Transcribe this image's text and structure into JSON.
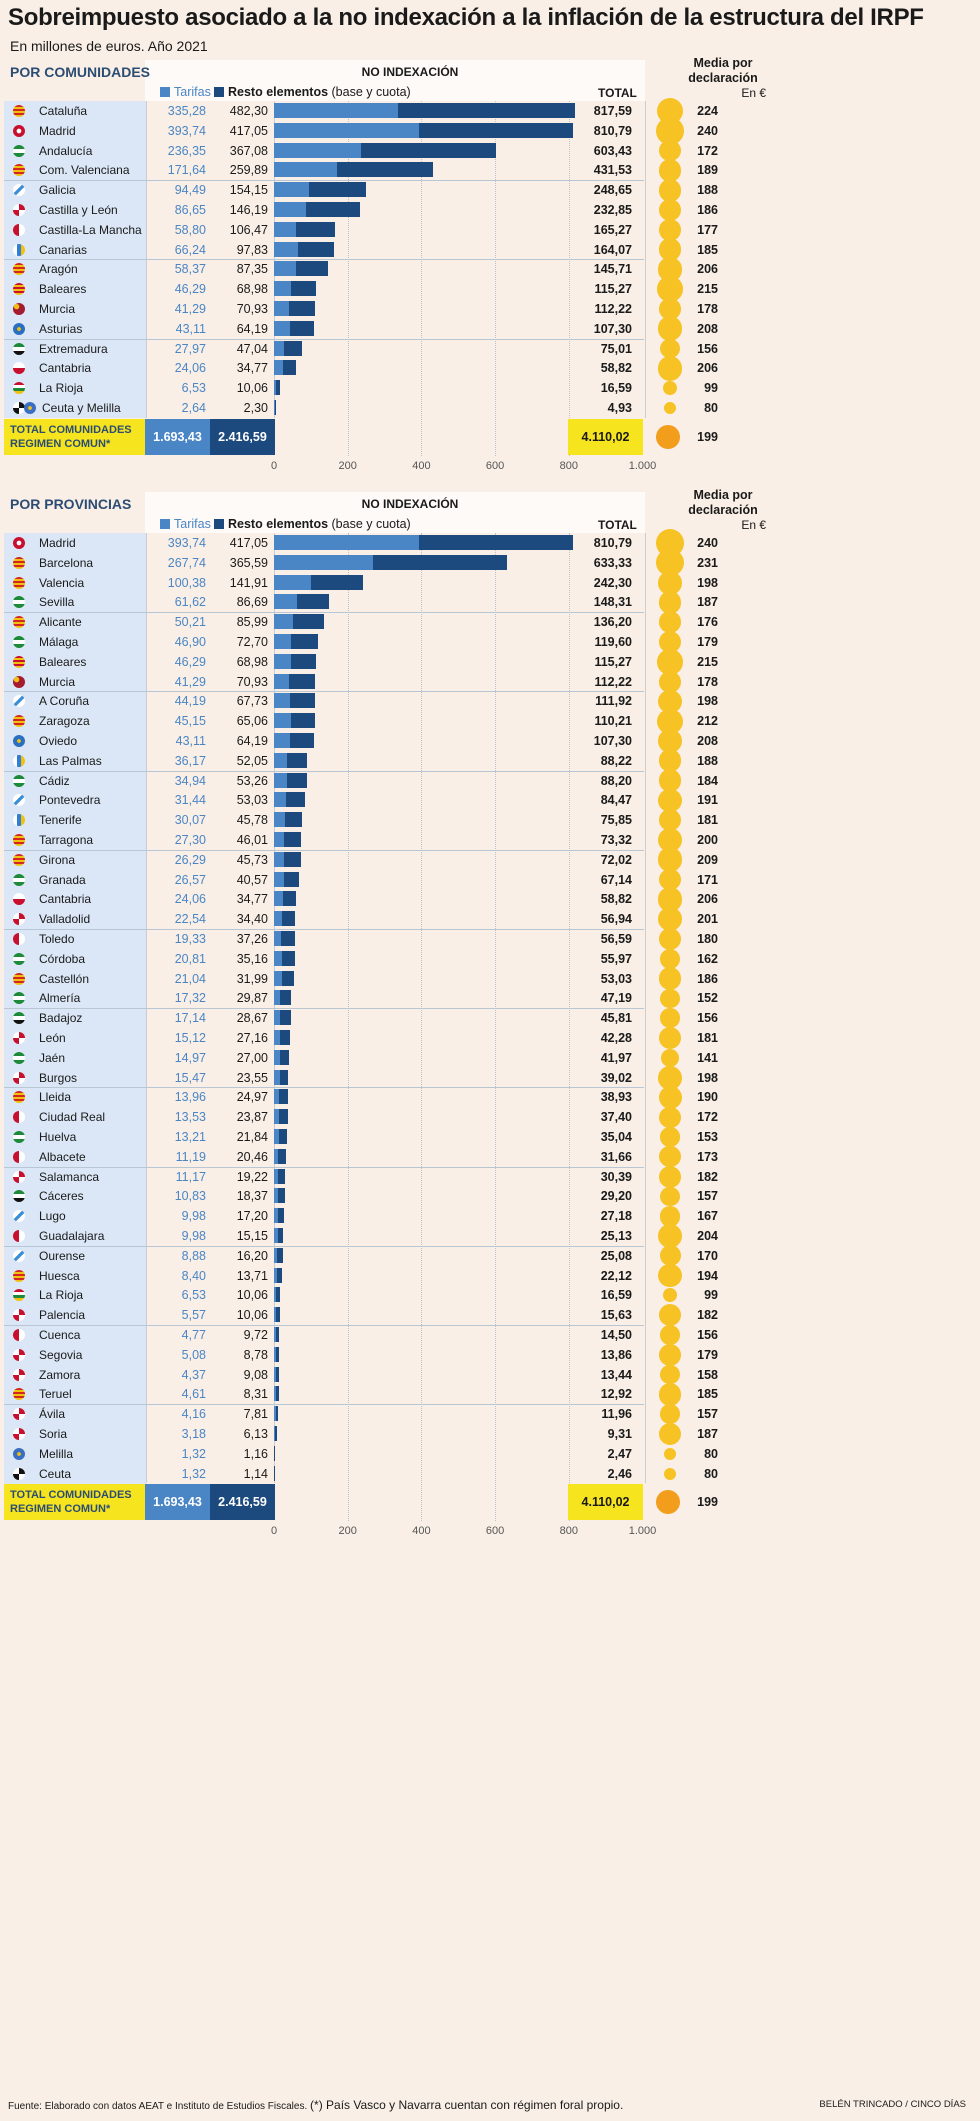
{
  "title": "Sobreimpuesto asociado a la no indexación a la inflación de la estructura del IRPF",
  "subtitle": "En millones de euros. Año 2021",
  "legend": {
    "tarifas": "Tarifas",
    "resto_bold": "Resto elementos",
    "resto_light": "(base y cuota)"
  },
  "header": {
    "no_index": "NO INDEXACIÓN",
    "total": "TOTAL",
    "media_1": "Media por",
    "media_2": "declaración",
    "en": "En €"
  },
  "axis_ticks": [
    "0",
    "200",
    "400",
    "600",
    "800",
    "1.000"
  ],
  "colors": {
    "tarifas": "#4a86c6",
    "resto": "#1d4a7e",
    "dot": "#f7c224",
    "total_dot": "#f29d1c",
    "highlight": "#f6e41e"
  },
  "sections": [
    {
      "label": "POR COMUNIDADES",
      "total_label_1": "TOTAL COMUNIDADES",
      "total_label_2": "REGIMEN COMUN*",
      "total_tarifas": "1.693,43",
      "total_resto": "2.416,59",
      "total_total": "4.110,02",
      "total_media": "199",
      "rows": [
        {
          "name": "Cataluña",
          "tarifas": "335,28",
          "resto": "482,30",
          "total": "817,59",
          "media": "224",
          "flag": "cat"
        },
        {
          "name": "Madrid",
          "tarifas": "393,74",
          "resto": "417,05",
          "total": "810,79",
          "media": "240",
          "flag": "mad"
        },
        {
          "name": "Andalucía",
          "tarifas": "236,35",
          "resto": "367,08",
          "total": "603,43",
          "media": "172",
          "flag": "and"
        },
        {
          "name": "Com. Valenciana",
          "tarifas": "171,64",
          "resto": "259,89",
          "total": "431,53",
          "media": "189",
          "flag": "cat"
        },
        {
          "name": "Galicia",
          "tarifas": "94,49",
          "resto": "154,15",
          "total": "248,65",
          "media": "188",
          "flag": "gal"
        },
        {
          "name": "Castilla y León",
          "tarifas": "86,65",
          "resto": "146,19",
          "total": "232,85",
          "media": "186",
          "flag": "cyl"
        },
        {
          "name": "Castilla-La Mancha",
          "tarifas": "58,80",
          "resto": "106,47",
          "total": "165,27",
          "media": "177",
          "flag": "clm"
        },
        {
          "name": "Canarias",
          "tarifas": "66,24",
          "resto": "97,83",
          "total": "164,07",
          "media": "185",
          "flag": "can"
        },
        {
          "name": "Aragón",
          "tarifas": "58,37",
          "resto": "87,35",
          "total": "145,71",
          "media": "206",
          "flag": "cat"
        },
        {
          "name": "Baleares",
          "tarifas": "46,29",
          "resto": "68,98",
          "total": "115,27",
          "media": "215",
          "flag": "bal"
        },
        {
          "name": "Murcia",
          "tarifas": "41,29",
          "resto": "70,93",
          "total": "112,22",
          "media": "178",
          "flag": "mur"
        },
        {
          "name": "Asturias",
          "tarifas": "43,11",
          "resto": "64,19",
          "total": "107,30",
          "media": "208",
          "flag": "ast"
        },
        {
          "name": "Extremadura",
          "tarifas": "27,97",
          "resto": "47,04",
          "total": "75,01",
          "media": "156",
          "flag": "ext"
        },
        {
          "name": "Cantabria",
          "tarifas": "24,06",
          "resto": "34,77",
          "total": "58,82",
          "media": "206",
          "flag": "ctb"
        },
        {
          "name": "La Rioja",
          "tarifas": "6,53",
          "resto": "10,06",
          "total": "16,59",
          "media": "99",
          "flag": "rio"
        },
        {
          "name": "Ceuta y Melilla",
          "tarifas": "2,64",
          "resto": "2,30",
          "total": "4,93",
          "media": "80",
          "flag": "ceu",
          "flag2": "mel"
        }
      ]
    },
    {
      "label": "POR PROVINCIAS",
      "total_label_1": "TOTAL COMUNIDADES",
      "total_label_2": "REGIMEN COMUN*",
      "total_tarifas": "1.693,43",
      "total_resto": "2.416,59",
      "total_total": "4.110,02",
      "total_media": "199",
      "rows": [
        {
          "name": "Madrid",
          "tarifas": "393,74",
          "resto": "417,05",
          "total": "810,79",
          "media": "240",
          "flag": "mad"
        },
        {
          "name": "Barcelona",
          "tarifas": "267,74",
          "resto": "365,59",
          "total": "633,33",
          "media": "231",
          "flag": "cat"
        },
        {
          "name": "Valencia",
          "tarifas": "100,38",
          "resto": "141,91",
          "total": "242,30",
          "media": "198",
          "flag": "cat"
        },
        {
          "name": "Sevilla",
          "tarifas": "61,62",
          "resto": "86,69",
          "total": "148,31",
          "media": "187",
          "flag": "and"
        },
        {
          "name": "Alicante",
          "tarifas": "50,21",
          "resto": "85,99",
          "total": "136,20",
          "media": "176",
          "flag": "cat"
        },
        {
          "name": "Málaga",
          "tarifas": "46,90",
          "resto": "72,70",
          "total": "119,60",
          "media": "179",
          "flag": "and"
        },
        {
          "name": "Baleares",
          "tarifas": "46,29",
          "resto": "68,98",
          "total": "115,27",
          "media": "215",
          "flag": "bal"
        },
        {
          "name": "Murcia",
          "tarifas": "41,29",
          "resto": "70,93",
          "total": "112,22",
          "media": "178",
          "flag": "mur"
        },
        {
          "name": "A Coruña",
          "tarifas": "44,19",
          "resto": "67,73",
          "total": "111,92",
          "media": "198",
          "flag": "gal"
        },
        {
          "name": "Zaragoza",
          "tarifas": "45,15",
          "resto": "65,06",
          "total": "110,21",
          "media": "212",
          "flag": "cat"
        },
        {
          "name": "Oviedo",
          "tarifas": "43,11",
          "resto": "64,19",
          "total": "107,30",
          "media": "208",
          "flag": "ast"
        },
        {
          "name": "Las Palmas",
          "tarifas": "36,17",
          "resto": "52,05",
          "total": "88,22",
          "media": "188",
          "flag": "can"
        },
        {
          "name": "Cádiz",
          "tarifas": "34,94",
          "resto": "53,26",
          "total": "88,20",
          "media": "184",
          "flag": "and"
        },
        {
          "name": "Pontevedra",
          "tarifas": "31,44",
          "resto": "53,03",
          "total": "84,47",
          "media": "191",
          "flag": "gal"
        },
        {
          "name": "Tenerife",
          "tarifas": "30,07",
          "resto": "45,78",
          "total": "75,85",
          "media": "181",
          "flag": "can"
        },
        {
          "name": "Tarragona",
          "tarifas": "27,30",
          "resto": "46,01",
          "total": "73,32",
          "media": "200",
          "flag": "cat"
        },
        {
          "name": "Girona",
          "tarifas": "26,29",
          "resto": "45,73",
          "total": "72,02",
          "media": "209",
          "flag": "cat"
        },
        {
          "name": "Granada",
          "tarifas": "26,57",
          "resto": "40,57",
          "total": "67,14",
          "media": "171",
          "flag": "and"
        },
        {
          "name": "Cantabria",
          "tarifas": "24,06",
          "resto": "34,77",
          "total": "58,82",
          "media": "206",
          "flag": "ctb"
        },
        {
          "name": "Valladolid",
          "tarifas": "22,54",
          "resto": "34,40",
          "total": "56,94",
          "media": "201",
          "flag": "cyl"
        },
        {
          "name": "Toledo",
          "tarifas": "19,33",
          "resto": "37,26",
          "total": "56,59",
          "media": "180",
          "flag": "clm"
        },
        {
          "name": "Córdoba",
          "tarifas": "20,81",
          "resto": "35,16",
          "total": "55,97",
          "media": "162",
          "flag": "and"
        },
        {
          "name": "Castellón",
          "tarifas": "21,04",
          "resto": "31,99",
          "total": "53,03",
          "media": "186",
          "flag": "cat"
        },
        {
          "name": "Almería",
          "tarifas": "17,32",
          "resto": "29,87",
          "total": "47,19",
          "media": "152",
          "flag": "and"
        },
        {
          "name": "Badajoz",
          "tarifas": "17,14",
          "resto": "28,67",
          "total": "45,81",
          "media": "156",
          "flag": "ext"
        },
        {
          "name": "León",
          "tarifas": "15,12",
          "resto": "27,16",
          "total": "42,28",
          "media": "181",
          "flag": "cyl"
        },
        {
          "name": "Jaén",
          "tarifas": "14,97",
          "resto": "27,00",
          "total": "41,97",
          "media": "141",
          "flag": "and"
        },
        {
          "name": "Burgos",
          "tarifas": "15,47",
          "resto": "23,55",
          "total": "39,02",
          "media": "198",
          "flag": "cyl"
        },
        {
          "name": "Lleida",
          "tarifas": "13,96",
          "resto": "24,97",
          "total": "38,93",
          "media": "190",
          "flag": "cat"
        },
        {
          "name": "Ciudad Real",
          "tarifas": "13,53",
          "resto": "23,87",
          "total": "37,40",
          "media": "172",
          "flag": "clm"
        },
        {
          "name": "Huelva",
          "tarifas": "13,21",
          "resto": "21,84",
          "total": "35,04",
          "media": "153",
          "flag": "and"
        },
        {
          "name": "Albacete",
          "tarifas": "11,19",
          "resto": "20,46",
          "total": "31,66",
          "media": "173",
          "flag": "clm"
        },
        {
          "name": "Salamanca",
          "tarifas": "11,17",
          "resto": "19,22",
          "total": "30,39",
          "media": "182",
          "flag": "cyl"
        },
        {
          "name": "Cáceres",
          "tarifas": "10,83",
          "resto": "18,37",
          "total": "29,20",
          "media": "157",
          "flag": "ext"
        },
        {
          "name": "Lugo",
          "tarifas": "9,98",
          "resto": "17,20",
          "total": "27,18",
          "media": "167",
          "flag": "gal"
        },
        {
          "name": "Guadalajara",
          "tarifas": "9,98",
          "resto": "15,15",
          "total": "25,13",
          "media": "204",
          "flag": "clm"
        },
        {
          "name": "Ourense",
          "tarifas": "8,88",
          "resto": "16,20",
          "total": "25,08",
          "media": "170",
          "flag": "gal"
        },
        {
          "name": "Huesca",
          "tarifas": "8,40",
          "resto": "13,71",
          "total": "22,12",
          "media": "194",
          "flag": "cat"
        },
        {
          "name": "La Rioja",
          "tarifas": "6,53",
          "resto": "10,06",
          "total": "16,59",
          "media": "99",
          "flag": "rio"
        },
        {
          "name": "Palencia",
          "tarifas": "5,57",
          "resto": "10,06",
          "total": "15,63",
          "media": "182",
          "flag": "cyl"
        },
        {
          "name": "Cuenca",
          "tarifas": "4,77",
          "resto": "9,72",
          "total": "14,50",
          "media": "156",
          "flag": "clm"
        },
        {
          "name": "Segovia",
          "tarifas": "5,08",
          "resto": "8,78",
          "total": "13,86",
          "media": "179",
          "flag": "cyl"
        },
        {
          "name": "Zamora",
          "tarifas": "4,37",
          "resto": "9,08",
          "total": "13,44",
          "media": "158",
          "flag": "cyl"
        },
        {
          "name": "Teruel",
          "tarifas": "4,61",
          "resto": "8,31",
          "total": "12,92",
          "media": "185",
          "flag": "cat"
        },
        {
          "name": "Ávila",
          "tarifas": "4,16",
          "resto": "7,81",
          "total": "11,96",
          "media": "157",
          "flag": "cyl"
        },
        {
          "name": "Soria",
          "tarifas": "3,18",
          "resto": "6,13",
          "total": "9,31",
          "media": "187",
          "flag": "cyl"
        },
        {
          "name": "Melilla",
          "tarifas": "1,32",
          "resto": "1,16",
          "total": "2,47",
          "media": "80",
          "flag": "mel"
        },
        {
          "name": "Ceuta",
          "tarifas": "1,32",
          "resto": "1,14",
          "total": "2,46",
          "media": "80",
          "flag": "ceu"
        }
      ]
    }
  ],
  "footer": {
    "source": "Fuente: Elaborado con datos AEAT e Instituto de Estudios Fiscales.",
    "note": "(*) País Vasco y Navarra cuentan con régimen foral propio.",
    "credit": "BELÉN TRINCADO / CINCO DÍAS"
  },
  "chart_data": [
    {
      "type": "bar",
      "stacked": true,
      "orientation": "horizontal",
      "section": "POR COMUNIDADES",
      "xlim": [
        0,
        1000
      ],
      "categories": [
        "Cataluña",
        "Madrid",
        "Andalucía",
        "Com. Valenciana",
        "Galicia",
        "Castilla y León",
        "Castilla-La Mancha",
        "Canarias",
        "Aragón",
        "Baleares",
        "Murcia",
        "Asturias",
        "Extremadura",
        "Cantabria",
        "La Rioja",
        "Ceuta y Melilla"
      ],
      "series": [
        {
          "name": "Tarifas",
          "values": [
            335.28,
            393.74,
            236.35,
            171.64,
            94.49,
            86.65,
            58.8,
            66.24,
            58.37,
            46.29,
            41.29,
            43.11,
            27.97,
            24.06,
            6.53,
            2.64
          ]
        },
        {
          "name": "Resto elementos (base y cuota)",
          "values": [
            482.3,
            417.05,
            367.08,
            259.89,
            154.15,
            146.19,
            106.47,
            97.83,
            87.35,
            68.98,
            70.93,
            64.19,
            47.04,
            34.77,
            10.06,
            2.3
          ]
        }
      ],
      "totals": [
        817.59,
        810.79,
        603.43,
        431.53,
        248.65,
        232.85,
        165.27,
        164.07,
        145.71,
        115.27,
        112.22,
        107.3,
        75.01,
        58.82,
        16.59,
        4.93
      ],
      "media_por_declaracion": [
        224,
        240,
        172,
        189,
        188,
        186,
        177,
        185,
        206,
        215,
        178,
        208,
        156,
        206,
        99,
        80
      ]
    },
    {
      "type": "bar",
      "stacked": true,
      "orientation": "horizontal",
      "section": "POR PROVINCIAS",
      "xlim": [
        0,
        1000
      ],
      "note": "values listed in sections[1].rows"
    }
  ]
}
